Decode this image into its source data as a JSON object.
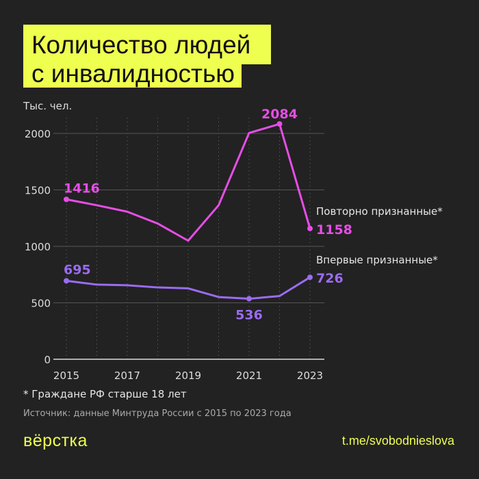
{
  "title_line1": "Количество людей",
  "title_line2": "с инвалидностью",
  "footnote": "* Граждане РФ старше 18 лет",
  "source": "Источник: данные Минтруда России с 2015 по 2023 года",
  "logo": "вёрстка",
  "link": "t.me/svobodnieslova",
  "chart_data": {
    "type": "line",
    "ylabel": "Тыс. чел.",
    "x": [
      2015,
      2016,
      2017,
      2018,
      2019,
      2020,
      2021,
      2022,
      2023
    ],
    "xticks": [
      "2015",
      "2017",
      "2019",
      "2021",
      "2023"
    ],
    "yticks": [
      "0",
      "500",
      "1000",
      "1500",
      "2000"
    ],
    "ylim": [
      0,
      2150
    ],
    "grid": "horizontal solid, vertical dotted",
    "series": [
      {
        "name": "Повторно признанные*",
        "color": "#e64ee6",
        "values": [
          1416,
          1364,
          1307,
          1202,
          1050,
          1364,
          2004,
          2084,
          1158
        ],
        "labels": [
          {
            "i": 0,
            "text": "1416"
          },
          {
            "i": 7,
            "text": "2084"
          },
          {
            "i": 8,
            "text": "1158"
          }
        ]
      },
      {
        "name": "Впервые признанные*",
        "color": "#9b6cf2",
        "values": [
          695,
          661,
          655,
          636,
          628,
          551,
          536,
          560,
          726
        ],
        "labels": [
          {
            "i": 0,
            "text": "695"
          },
          {
            "i": 6,
            "text": "536"
          },
          {
            "i": 8,
            "text": "726"
          }
        ]
      }
    ]
  }
}
